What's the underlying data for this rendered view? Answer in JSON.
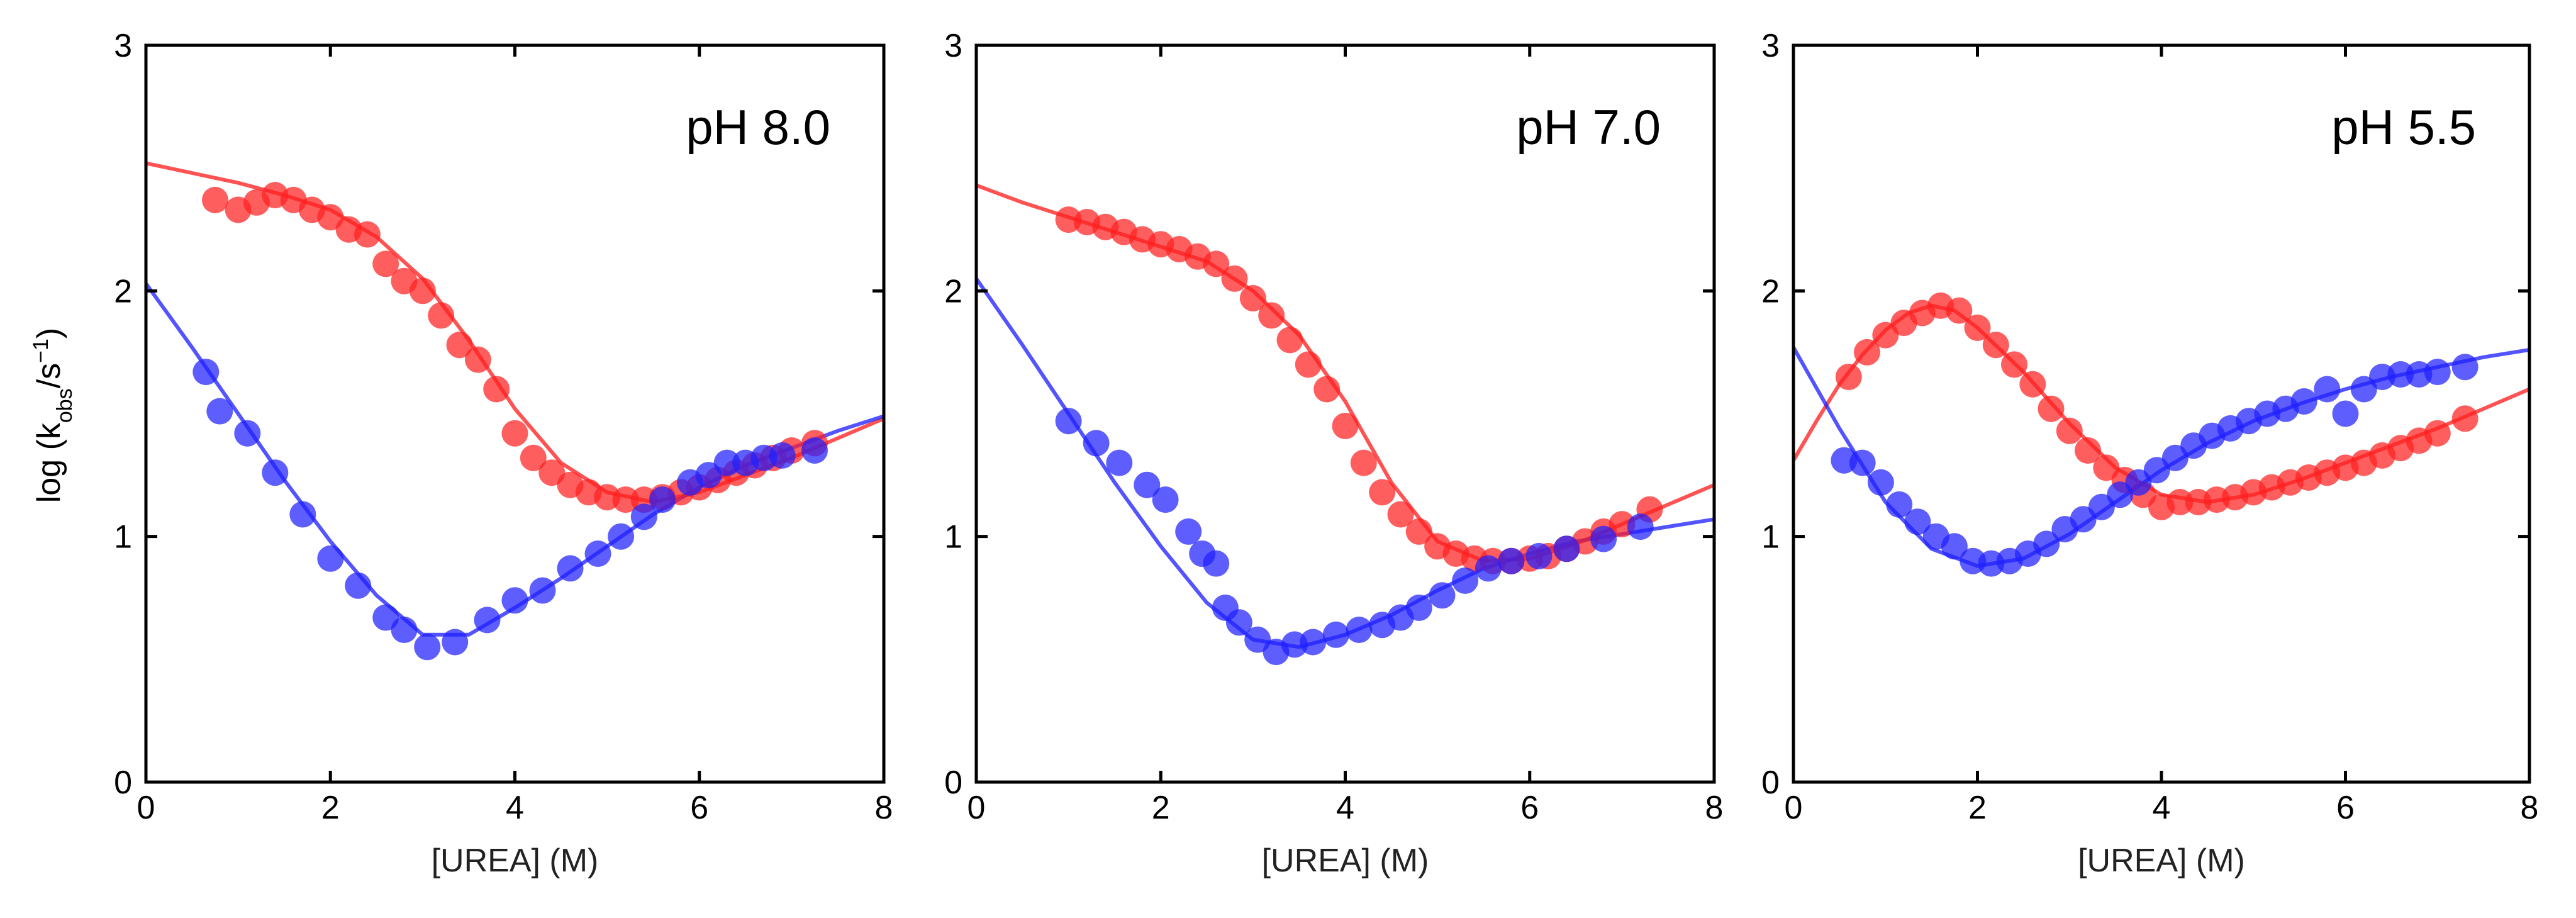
{
  "ylabel": "log (k_obs/s^-1)",
  "ylabel_parts": {
    "main": "log (k",
    "sub": "obs",
    "mid": "/s",
    "sup": "−1",
    "end": ")"
  },
  "colors": {
    "red": "#ff2020",
    "blue": "#2020ff",
    "red_line": "#ff1a1a",
    "blue_line": "#1a1aff"
  },
  "chart_data": [
    {
      "type": "scatter",
      "title": "pH 8.0",
      "xlabel": "[UREA] (M)",
      "ylabel": "log (k_obs/s^-1)",
      "xlim": [
        0,
        8
      ],
      "ylim": [
        0,
        3
      ],
      "xticks": [
        "0",
        "2",
        "4",
        "6",
        "8"
      ],
      "yticks": [
        "0",
        "1",
        "2",
        "3"
      ],
      "series": [
        {
          "name": "red",
          "color": "#ff2020",
          "x": [
            0.75,
            1.0,
            1.2,
            1.4,
            1.6,
            1.8,
            2.0,
            2.2,
            2.4,
            2.6,
            2.8,
            3.0,
            3.2,
            3.4,
            3.6,
            3.8,
            4.0,
            4.2,
            4.4,
            4.6,
            4.8,
            5.0,
            5.2,
            5.4,
            5.6,
            5.8,
            6.0,
            6.2,
            6.4,
            6.6,
            6.8,
            7.0,
            7.25
          ],
          "y": [
            2.37,
            2.33,
            2.36,
            2.39,
            2.37,
            2.33,
            2.3,
            2.25,
            2.23,
            2.11,
            2.04,
            2.0,
            1.9,
            1.78,
            1.72,
            1.6,
            1.42,
            1.32,
            1.26,
            1.21,
            1.18,
            1.16,
            1.15,
            1.15,
            1.16,
            1.18,
            1.2,
            1.23,
            1.26,
            1.29,
            1.32,
            1.35,
            1.38
          ],
          "fit_x": [
            0,
            0.5,
            1,
            1.5,
            2,
            2.5,
            3,
            3.5,
            4,
            4.5,
            5,
            5.5,
            6,
            6.5,
            7,
            7.5,
            8
          ],
          "fit_y": [
            2.52,
            2.48,
            2.44,
            2.39,
            2.33,
            2.22,
            2.05,
            1.8,
            1.52,
            1.3,
            1.18,
            1.14,
            1.18,
            1.25,
            1.32,
            1.4,
            1.48
          ]
        },
        {
          "name": "blue",
          "color": "#2020ff",
          "x": [
            0.65,
            0.8,
            1.1,
            1.4,
            1.7,
            2.0,
            2.3,
            2.6,
            2.8,
            3.05,
            3.35,
            3.7,
            4.0,
            4.3,
            4.6,
            4.9,
            5.15,
            5.4,
            5.6,
            5.9,
            6.1,
            6.3,
            6.5,
            6.7,
            6.9,
            7.25
          ],
          "y": [
            1.67,
            1.51,
            1.42,
            1.26,
            1.09,
            0.91,
            0.8,
            0.67,
            0.62,
            0.55,
            0.57,
            0.66,
            0.74,
            0.78,
            0.87,
            0.93,
            1.0,
            1.08,
            1.15,
            1.22,
            1.25,
            1.3,
            1.3,
            1.32,
            1.33,
            1.35
          ],
          "fit_x": [
            0,
            0.5,
            1,
            1.5,
            2,
            2.5,
            3,
            3.5,
            4,
            4.5,
            5,
            5.5,
            6,
            6.5,
            7,
            7.5,
            8
          ],
          "fit_y": [
            2.03,
            1.77,
            1.5,
            1.23,
            0.98,
            0.76,
            0.6,
            0.6,
            0.71,
            0.83,
            0.96,
            1.09,
            1.2,
            1.29,
            1.36,
            1.43,
            1.49
          ]
        }
      ]
    },
    {
      "type": "scatter",
      "title": "pH 7.0",
      "xlabel": "[UREA] (M)",
      "ylabel": "",
      "xlim": [
        0,
        8
      ],
      "ylim": [
        0,
        3
      ],
      "xticks": [
        "0",
        "2",
        "4",
        "6",
        "8"
      ],
      "yticks": [
        "0",
        "1",
        "2",
        "3"
      ],
      "series": [
        {
          "name": "red",
          "color": "#ff2020",
          "x": [
            1.0,
            1.2,
            1.4,
            1.6,
            1.8,
            2.0,
            2.2,
            2.4,
            2.6,
            2.8,
            3.0,
            3.2,
            3.4,
            3.6,
            3.8,
            4.0,
            4.2,
            4.4,
            4.6,
            4.8,
            5.0,
            5.2,
            5.4,
            5.6,
            5.8,
            6.0,
            6.2,
            6.4,
            6.6,
            6.8,
            7.0,
            7.3
          ],
          "y": [
            2.29,
            2.28,
            2.26,
            2.24,
            2.21,
            2.19,
            2.17,
            2.14,
            2.11,
            2.05,
            1.97,
            1.9,
            1.8,
            1.7,
            1.6,
            1.45,
            1.3,
            1.18,
            1.09,
            1.02,
            0.96,
            0.93,
            0.91,
            0.9,
            0.9,
            0.91,
            0.92,
            0.95,
            0.98,
            1.02,
            1.05,
            1.11
          ],
          "fit_x": [
            0,
            0.5,
            1,
            1.5,
            2,
            2.5,
            3,
            3.5,
            4,
            4.5,
            5,
            5.5,
            6,
            6.5,
            7,
            7.5,
            8
          ],
          "fit_y": [
            2.43,
            2.36,
            2.3,
            2.24,
            2.18,
            2.12,
            2.0,
            1.82,
            1.55,
            1.22,
            0.98,
            0.9,
            0.91,
            0.97,
            1.05,
            1.13,
            1.21
          ]
        },
        {
          "name": "blue",
          "color": "#2020ff",
          "x": [
            1.0,
            1.3,
            1.55,
            1.85,
            2.05,
            2.3,
            2.45,
            2.6,
            2.7,
            2.85,
            3.05,
            3.25,
            3.45,
            3.65,
            3.9,
            4.15,
            4.4,
            4.6,
            4.8,
            5.05,
            5.3,
            5.55,
            5.8,
            6.1,
            6.4,
            6.8,
            7.2
          ],
          "y": [
            1.47,
            1.38,
            1.3,
            1.21,
            1.15,
            1.02,
            0.93,
            0.89,
            0.71,
            0.65,
            0.58,
            0.53,
            0.56,
            0.57,
            0.6,
            0.62,
            0.64,
            0.67,
            0.71,
            0.76,
            0.82,
            0.87,
            0.9,
            0.92,
            0.95,
            0.99,
            1.04
          ],
          "fit_x": [
            0,
            0.5,
            1,
            1.5,
            2,
            2.5,
            3,
            3.5,
            4,
            4.5,
            5,
            5.5,
            6,
            6.5,
            7,
            7.5,
            8
          ],
          "fit_y": [
            2.05,
            1.78,
            1.5,
            1.22,
            0.96,
            0.73,
            0.58,
            0.55,
            0.6,
            0.68,
            0.78,
            0.87,
            0.93,
            0.98,
            1.01,
            1.04,
            1.07
          ]
        }
      ]
    },
    {
      "type": "scatter",
      "title": "pH 5.5",
      "xlabel": "[UREA] (M)",
      "ylabel": "",
      "xlim": [
        0,
        8
      ],
      "ylim": [
        0,
        3
      ],
      "xticks": [
        "0",
        "2",
        "4",
        "6",
        "8"
      ],
      "yticks": [
        "0",
        "1",
        "2",
        "3"
      ],
      "series": [
        {
          "name": "red",
          "color": "#ff2020",
          "x": [
            0.6,
            0.8,
            1.0,
            1.2,
            1.4,
            1.6,
            1.8,
            2.0,
            2.2,
            2.4,
            2.6,
            2.8,
            3.0,
            3.2,
            3.4,
            3.6,
            3.8,
            4.0,
            4.2,
            4.4,
            4.6,
            4.8,
            5.0,
            5.2,
            5.4,
            5.6,
            5.8,
            6.0,
            6.2,
            6.4,
            6.6,
            6.8,
            7.0,
            7.3
          ],
          "y": [
            1.65,
            1.75,
            1.82,
            1.87,
            1.91,
            1.94,
            1.92,
            1.85,
            1.78,
            1.7,
            1.62,
            1.52,
            1.43,
            1.35,
            1.28,
            1.23,
            1.17,
            1.12,
            1.14,
            1.14,
            1.15,
            1.16,
            1.18,
            1.2,
            1.22,
            1.24,
            1.26,
            1.28,
            1.3,
            1.33,
            1.36,
            1.39,
            1.42,
            1.48
          ],
          "fit_x": [
            0,
            0.25,
            0.5,
            0.75,
            1,
            1.25,
            1.5,
            1.75,
            2,
            2.5,
            3,
            3.5,
            4,
            4.5,
            5,
            5.5,
            6,
            6.5,
            7,
            7.5,
            8
          ],
          "fit_y": [
            1.31,
            1.47,
            1.62,
            1.74,
            1.84,
            1.91,
            1.94,
            1.92,
            1.85,
            1.67,
            1.46,
            1.28,
            1.17,
            1.14,
            1.17,
            1.23,
            1.3,
            1.37,
            1.44,
            1.52,
            1.6
          ]
        },
        {
          "name": "blue",
          "color": "#2020ff",
          "x": [
            0.55,
            0.75,
            0.95,
            1.15,
            1.35,
            1.55,
            1.75,
            1.95,
            2.15,
            2.35,
            2.55,
            2.75,
            2.95,
            3.15,
            3.35,
            3.55,
            3.75,
            3.95,
            4.15,
            4.35,
            4.55,
            4.75,
            4.95,
            5.15,
            5.35,
            5.55,
            5.8,
            6.0,
            6.2,
            6.4,
            6.6,
            6.8,
            7.0,
            7.3
          ],
          "y": [
            1.31,
            1.3,
            1.22,
            1.13,
            1.06,
            1.0,
            0.96,
            0.9,
            0.89,
            0.9,
            0.93,
            0.97,
            1.03,
            1.07,
            1.12,
            1.17,
            1.22,
            1.27,
            1.32,
            1.37,
            1.41,
            1.44,
            1.47,
            1.5,
            1.52,
            1.55,
            1.6,
            1.5,
            1.6,
            1.65,
            1.66,
            1.66,
            1.67,
            1.69
          ],
          "fit_x": [
            0,
            0.5,
            1,
            1.5,
            2,
            2.5,
            3,
            3.5,
            4,
            4.5,
            5,
            5.5,
            6,
            6.5,
            7,
            7.5,
            8
          ],
          "fit_y": [
            1.77,
            1.44,
            1.14,
            0.95,
            0.88,
            0.91,
            1.01,
            1.14,
            1.27,
            1.38,
            1.47,
            1.54,
            1.6,
            1.65,
            1.69,
            1.73,
            1.76
          ]
        }
      ]
    }
  ]
}
